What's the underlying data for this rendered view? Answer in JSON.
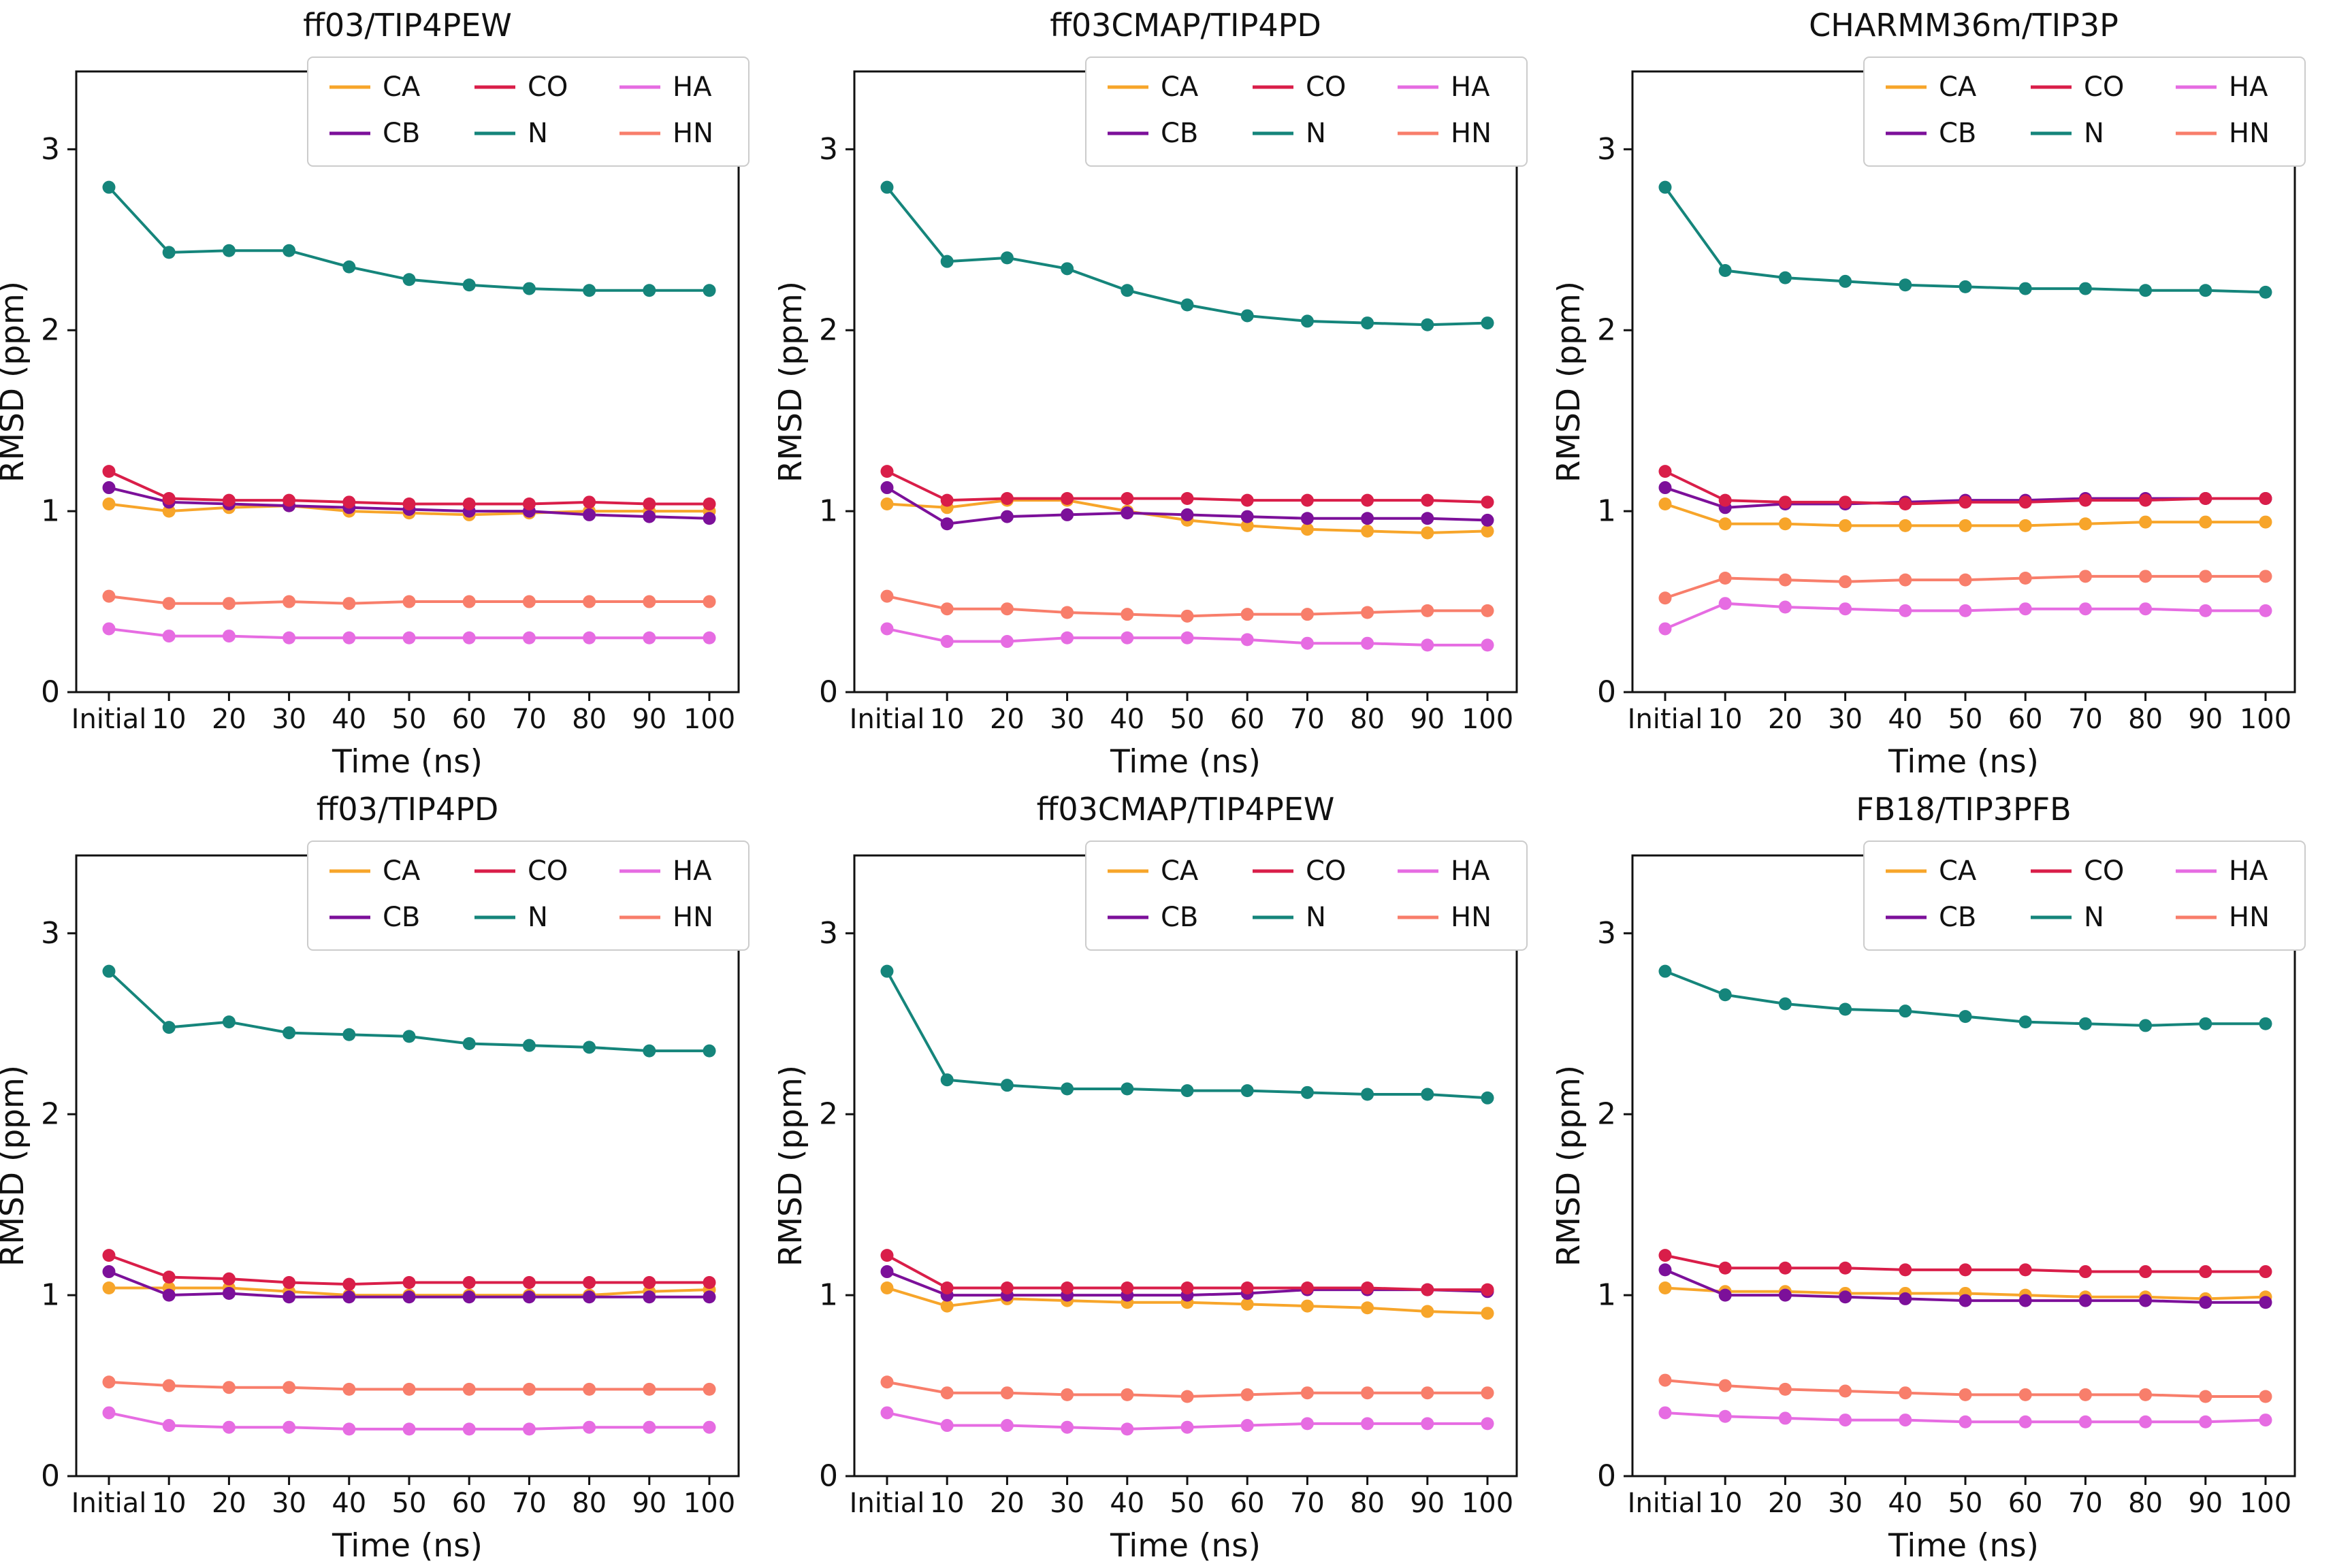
{
  "figure": {
    "xlabel": "Time (ns)",
    "ylabel": "RMSD (ppm)",
    "x_categories": [
      "Initial",
      "10",
      "20",
      "30",
      "40",
      "50",
      "60",
      "70",
      "80",
      "90",
      "100"
    ],
    "yticks": [
      "0",
      "1",
      "2",
      "3"
    ],
    "ylim": [
      0,
      3.43
    ],
    "grid": false,
    "legend_position": "upper right",
    "colors": {
      "CA": "#F7A52A",
      "CB": "#7C109A",
      "CO": "#D91E49",
      "N": "#15857B",
      "HA": "#E66CE2",
      "HN": "#F87E6B"
    },
    "legend_columns": [
      [
        "CA",
        "CB"
      ],
      [
        "CO",
        "N"
      ],
      [
        "HA",
        "HN"
      ]
    ]
  },
  "chart_data": [
    {
      "type": "line",
      "title": "ff03/TIP4PEW",
      "xlabel": "Time (ns)",
      "ylabel": "RMSD (ppm)",
      "categories": [
        "Initial",
        "10",
        "20",
        "30",
        "40",
        "50",
        "60",
        "70",
        "80",
        "90",
        "100"
      ],
      "series": [
        {
          "name": "CA",
          "values": [
            1.04,
            1.0,
            1.02,
            1.03,
            1.0,
            0.99,
            0.98,
            0.99,
            1.0,
            1.0,
            1.0
          ]
        },
        {
          "name": "CB",
          "values": [
            1.13,
            1.05,
            1.04,
            1.03,
            1.02,
            1.01,
            1.0,
            1.0,
            0.98,
            0.97,
            0.96
          ]
        },
        {
          "name": "CO",
          "values": [
            1.22,
            1.07,
            1.06,
            1.06,
            1.05,
            1.04,
            1.04,
            1.04,
            1.05,
            1.04,
            1.04
          ]
        },
        {
          "name": "N",
          "values": [
            2.79,
            2.43,
            2.44,
            2.44,
            2.35,
            2.28,
            2.25,
            2.23,
            2.22,
            2.22,
            2.22
          ]
        },
        {
          "name": "HA",
          "values": [
            0.35,
            0.31,
            0.31,
            0.3,
            0.3,
            0.3,
            0.3,
            0.3,
            0.3,
            0.3,
            0.3
          ]
        },
        {
          "name": "HN",
          "values": [
            0.53,
            0.49,
            0.49,
            0.5,
            0.49,
            0.5,
            0.5,
            0.5,
            0.5,
            0.5,
            0.5
          ]
        }
      ]
    },
    {
      "type": "line",
      "title": "ff03CMAP/TIP4PD",
      "xlabel": "Time (ns)",
      "ylabel": "RMSD (ppm)",
      "categories": [
        "Initial",
        "10",
        "20",
        "30",
        "40",
        "50",
        "60",
        "70",
        "80",
        "90",
        "100"
      ],
      "series": [
        {
          "name": "CA",
          "values": [
            1.04,
            1.02,
            1.06,
            1.06,
            1.0,
            0.95,
            0.92,
            0.9,
            0.89,
            0.88,
            0.89
          ]
        },
        {
          "name": "CB",
          "values": [
            1.13,
            0.93,
            0.97,
            0.98,
            0.99,
            0.98,
            0.97,
            0.96,
            0.96,
            0.96,
            0.95
          ]
        },
        {
          "name": "CO",
          "values": [
            1.22,
            1.06,
            1.07,
            1.07,
            1.07,
            1.07,
            1.06,
            1.06,
            1.06,
            1.06,
            1.05
          ]
        },
        {
          "name": "N",
          "values": [
            2.79,
            2.38,
            2.4,
            2.34,
            2.22,
            2.14,
            2.08,
            2.05,
            2.04,
            2.03,
            2.04
          ]
        },
        {
          "name": "HA",
          "values": [
            0.35,
            0.28,
            0.28,
            0.3,
            0.3,
            0.3,
            0.29,
            0.27,
            0.27,
            0.26,
            0.26
          ]
        },
        {
          "name": "HN",
          "values": [
            0.53,
            0.46,
            0.46,
            0.44,
            0.43,
            0.42,
            0.43,
            0.43,
            0.44,
            0.45,
            0.45
          ]
        }
      ]
    },
    {
      "type": "line",
      "title": "CHARMM36m/TIP3P",
      "xlabel": "Time (ns)",
      "ylabel": "RMSD (ppm)",
      "categories": [
        "Initial",
        "10",
        "20",
        "30",
        "40",
        "50",
        "60",
        "70",
        "80",
        "90",
        "100"
      ],
      "series": [
        {
          "name": "CA",
          "values": [
            1.04,
            0.93,
            0.93,
            0.92,
            0.92,
            0.92,
            0.92,
            0.93,
            0.94,
            0.94,
            0.94
          ]
        },
        {
          "name": "CB",
          "values": [
            1.13,
            1.02,
            1.04,
            1.04,
            1.05,
            1.06,
            1.06,
            1.07,
            1.07,
            1.07,
            1.07
          ]
        },
        {
          "name": "CO",
          "values": [
            1.22,
            1.06,
            1.05,
            1.05,
            1.04,
            1.05,
            1.05,
            1.06,
            1.06,
            1.07,
            1.07
          ]
        },
        {
          "name": "N",
          "values": [
            2.79,
            2.33,
            2.29,
            2.27,
            2.25,
            2.24,
            2.23,
            2.23,
            2.22,
            2.22,
            2.21
          ]
        },
        {
          "name": "HA",
          "values": [
            0.35,
            0.49,
            0.47,
            0.46,
            0.45,
            0.45,
            0.46,
            0.46,
            0.46,
            0.45,
            0.45
          ]
        },
        {
          "name": "HN",
          "values": [
            0.52,
            0.63,
            0.62,
            0.61,
            0.62,
            0.62,
            0.63,
            0.64,
            0.64,
            0.64,
            0.64
          ]
        }
      ]
    },
    {
      "type": "line",
      "title": "ff03/TIP4PD",
      "xlabel": "Time (ns)",
      "ylabel": "RMSD (ppm)",
      "categories": [
        "Initial",
        "10",
        "20",
        "30",
        "40",
        "50",
        "60",
        "70",
        "80",
        "90",
        "100"
      ],
      "series": [
        {
          "name": "CA",
          "values": [
            1.04,
            1.04,
            1.04,
            1.02,
            1.0,
            1.0,
            1.0,
            1.0,
            1.0,
            1.02,
            1.03
          ]
        },
        {
          "name": "CB",
          "values": [
            1.13,
            1.0,
            1.01,
            0.99,
            0.99,
            0.99,
            0.99,
            0.99,
            0.99,
            0.99,
            0.99
          ]
        },
        {
          "name": "CO",
          "values": [
            1.22,
            1.1,
            1.09,
            1.07,
            1.06,
            1.07,
            1.07,
            1.07,
            1.07,
            1.07,
            1.07
          ]
        },
        {
          "name": "N",
          "values": [
            2.79,
            2.48,
            2.51,
            2.45,
            2.44,
            2.43,
            2.39,
            2.38,
            2.37,
            2.35,
            2.35
          ]
        },
        {
          "name": "HA",
          "values": [
            0.35,
            0.28,
            0.27,
            0.27,
            0.26,
            0.26,
            0.26,
            0.26,
            0.27,
            0.27,
            0.27
          ]
        },
        {
          "name": "HN",
          "values": [
            0.52,
            0.5,
            0.49,
            0.49,
            0.48,
            0.48,
            0.48,
            0.48,
            0.48,
            0.48,
            0.48
          ]
        }
      ]
    },
    {
      "type": "line",
      "title": "ff03CMAP/TIP4PEW",
      "xlabel": "Time (ns)",
      "ylabel": "RMSD (ppm)",
      "categories": [
        "Initial",
        "10",
        "20",
        "30",
        "40",
        "50",
        "60",
        "70",
        "80",
        "90",
        "100"
      ],
      "series": [
        {
          "name": "CA",
          "values": [
            1.04,
            0.94,
            0.98,
            0.97,
            0.96,
            0.96,
            0.95,
            0.94,
            0.93,
            0.91,
            0.9
          ]
        },
        {
          "name": "CB",
          "values": [
            1.13,
            1.0,
            1.0,
            1.0,
            1.0,
            1.0,
            1.01,
            1.03,
            1.03,
            1.03,
            1.02
          ]
        },
        {
          "name": "CO",
          "values": [
            1.22,
            1.04,
            1.04,
            1.04,
            1.04,
            1.04,
            1.04,
            1.04,
            1.04,
            1.03,
            1.03
          ]
        },
        {
          "name": "N",
          "values": [
            2.79,
            2.19,
            2.16,
            2.14,
            2.14,
            2.13,
            2.13,
            2.12,
            2.11,
            2.11,
            2.09
          ]
        },
        {
          "name": "HA",
          "values": [
            0.35,
            0.28,
            0.28,
            0.27,
            0.26,
            0.27,
            0.28,
            0.29,
            0.29,
            0.29,
            0.29
          ]
        },
        {
          "name": "HN",
          "values": [
            0.52,
            0.46,
            0.46,
            0.45,
            0.45,
            0.44,
            0.45,
            0.46,
            0.46,
            0.46,
            0.46
          ]
        }
      ]
    },
    {
      "type": "line",
      "title": "FB18/TIP3PFB",
      "xlabel": "Time (ns)",
      "ylabel": "RMSD (ppm)",
      "categories": [
        "Initial",
        "10",
        "20",
        "30",
        "40",
        "50",
        "60",
        "70",
        "80",
        "90",
        "100"
      ],
      "series": [
        {
          "name": "CA",
          "values": [
            1.04,
            1.02,
            1.02,
            1.01,
            1.01,
            1.01,
            1.0,
            0.99,
            0.99,
            0.98,
            0.99
          ]
        },
        {
          "name": "CB",
          "values": [
            1.14,
            1.0,
            1.0,
            0.99,
            0.98,
            0.97,
            0.97,
            0.97,
            0.97,
            0.96,
            0.96
          ]
        },
        {
          "name": "CO",
          "values": [
            1.22,
            1.15,
            1.15,
            1.15,
            1.14,
            1.14,
            1.14,
            1.13,
            1.13,
            1.13,
            1.13
          ]
        },
        {
          "name": "N",
          "values": [
            2.79,
            2.66,
            2.61,
            2.58,
            2.57,
            2.54,
            2.51,
            2.5,
            2.49,
            2.5,
            2.5
          ]
        },
        {
          "name": "HA",
          "values": [
            0.35,
            0.33,
            0.32,
            0.31,
            0.31,
            0.3,
            0.3,
            0.3,
            0.3,
            0.3,
            0.31
          ]
        },
        {
          "name": "HN",
          "values": [
            0.53,
            0.5,
            0.48,
            0.47,
            0.46,
            0.45,
            0.45,
            0.45,
            0.45,
            0.44,
            0.44
          ]
        }
      ]
    }
  ]
}
